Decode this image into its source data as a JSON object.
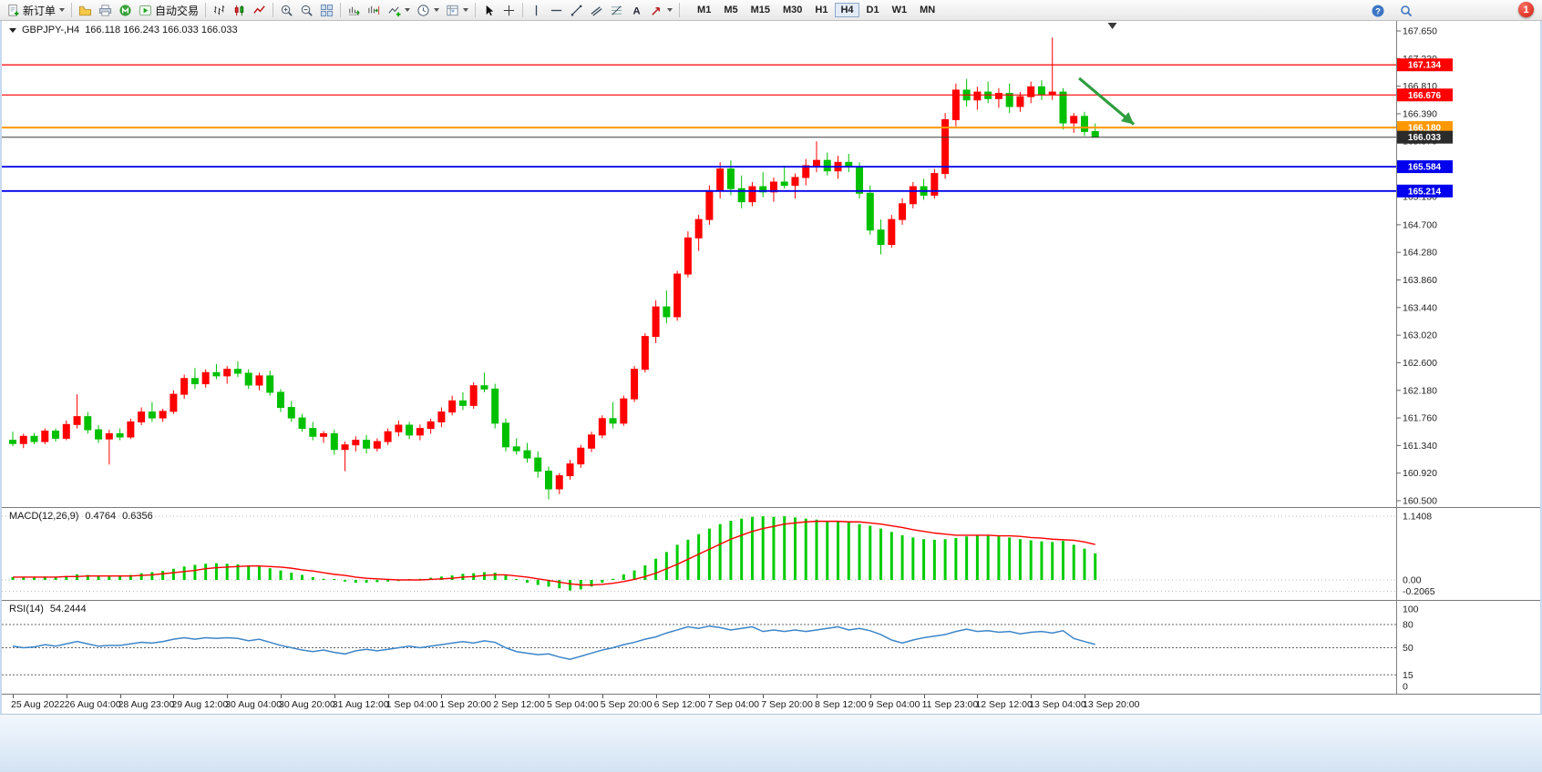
{
  "toolbar": {
    "new_order_label": "新订单",
    "auto_trading_label": "自动交易",
    "timeframes": [
      "M1",
      "M5",
      "M15",
      "M30",
      "H1",
      "H4",
      "D1",
      "W1",
      "MN"
    ],
    "active_timeframe": "H4",
    "notification_count": "1",
    "icon_glyphs": {
      "text_tool": "A",
      "help": "?"
    }
  },
  "chart_data": {
    "type": "candlestick",
    "symbol_label": "GBPJPY-,H4",
    "ohlc_label": "166.118 166.243 166.033 166.033",
    "colors": {
      "up": "#ff0000",
      "down": "#00c000",
      "macd_hist": "#00cc00",
      "macd_signal": "#ff0000",
      "rsi_line": "#3d85c8"
    },
    "main": {
      "price_min": 160.5,
      "price_max": 167.65,
      "price_ticks": [
        167.65,
        167.23,
        166.81,
        166.39,
        165.97,
        165.55,
        165.13,
        164.7,
        164.28,
        163.86,
        163.44,
        163.02,
        162.6,
        162.18,
        161.76,
        161.34,
        160.92,
        160.5
      ],
      "hlines": [
        {
          "price": 167.134,
          "label": "167.134",
          "color": "#ff0000",
          "badge": "#ff0000",
          "width": 1.2
        },
        {
          "price": 166.676,
          "label": "166.676",
          "color": "#ff0000",
          "badge": "#ff0000",
          "width": 1.2
        },
        {
          "price": 166.18,
          "label": "166.180",
          "color": "#ff9800",
          "badge": "#ff9800",
          "width": 2
        },
        {
          "price": 166.033,
          "label": "166.033",
          "color": "#3c3c3c",
          "badge": "#2b2b2b",
          "width": 1
        },
        {
          "price": 165.584,
          "label": "165.584",
          "color": "#0000ee",
          "badge": "#0000ee",
          "width": 1.8
        },
        {
          "price": 165.214,
          "label": "165.214",
          "color": "#0000ee",
          "badge": "#0000ee",
          "width": 1.8
        }
      ],
      "arrow": {
        "from_bar": 99.5,
        "from_price": 166.93,
        "to_bar": 104.6,
        "to_price": 166.23,
        "color": "#2f9e3f"
      },
      "shift_marker_bar": 102.6,
      "candles": [
        [
          161.42,
          161.55,
          161.33,
          161.37
        ],
        [
          161.37,
          161.52,
          161.3,
          161.48
        ],
        [
          161.48,
          161.53,
          161.36,
          161.4
        ],
        [
          161.4,
          161.6,
          161.36,
          161.56
        ],
        [
          161.56,
          161.6,
          161.4,
          161.45
        ],
        [
          161.45,
          161.72,
          161.42,
          161.66
        ],
        [
          161.66,
          162.12,
          161.6,
          161.78
        ],
        [
          161.78,
          161.85,
          161.52,
          161.58
        ],
        [
          161.58,
          161.65,
          161.38,
          161.44
        ],
        [
          161.44,
          161.58,
          161.05,
          161.52
        ],
        [
          161.52,
          161.6,
          161.42,
          161.47
        ],
        [
          161.47,
          161.75,
          161.44,
          161.7
        ],
        [
          161.7,
          161.92,
          161.65,
          161.85
        ],
        [
          161.85,
          162.0,
          161.7,
          161.76
        ],
        [
          161.76,
          161.9,
          161.7,
          161.86
        ],
        [
          161.86,
          162.18,
          161.82,
          162.12
        ],
        [
          162.12,
          162.42,
          162.05,
          162.36
        ],
        [
          162.36,
          162.52,
          162.2,
          162.28
        ],
        [
          162.28,
          162.5,
          162.22,
          162.45
        ],
        [
          162.45,
          162.58,
          162.35,
          162.4
        ],
        [
          162.4,
          162.55,
          162.28,
          162.5
        ],
        [
          162.5,
          162.62,
          162.38,
          162.44
        ],
        [
          162.44,
          162.5,
          162.2,
          162.26
        ],
        [
          162.26,
          162.45,
          162.18,
          162.4
        ],
        [
          162.4,
          162.48,
          162.1,
          162.15
        ],
        [
          162.15,
          162.2,
          161.85,
          161.92
        ],
        [
          161.92,
          162.02,
          161.7,
          161.76
        ],
        [
          161.76,
          161.82,
          161.55,
          161.6
        ],
        [
          161.6,
          161.7,
          161.42,
          161.48
        ],
        [
          161.48,
          161.56,
          161.38,
          161.52
        ],
        [
          161.52,
          161.58,
          161.2,
          161.28
        ],
        [
          161.28,
          161.4,
          160.95,
          161.35
        ],
        [
          161.35,
          161.48,
          161.25,
          161.42
        ],
        [
          161.42,
          161.5,
          161.22,
          161.3
        ],
        [
          161.3,
          161.45,
          161.25,
          161.4
        ],
        [
          161.4,
          161.6,
          161.35,
          161.55
        ],
        [
          161.55,
          161.72,
          161.48,
          161.65
        ],
        [
          161.65,
          161.7,
          161.44,
          161.5
        ],
        [
          161.5,
          161.66,
          161.42,
          161.6
        ],
        [
          161.6,
          161.75,
          161.52,
          161.7
        ],
        [
          161.7,
          161.92,
          161.62,
          161.85
        ],
        [
          161.85,
          162.1,
          161.8,
          162.02
        ],
        [
          162.02,
          162.15,
          161.88,
          161.95
        ],
        [
          161.95,
          162.3,
          161.9,
          162.25
        ],
        [
          162.25,
          162.45,
          162.15,
          162.2
        ],
        [
          162.2,
          162.28,
          161.6,
          161.68
        ],
        [
          161.68,
          161.75,
          161.25,
          161.32
        ],
        [
          161.32,
          161.45,
          161.2,
          161.26
        ],
        [
          161.26,
          161.38,
          161.08,
          161.15
        ],
        [
          161.15,
          161.25,
          160.85,
          160.95
        ],
        [
          160.95,
          161.02,
          160.52,
          160.68
        ],
        [
          160.68,
          160.92,
          160.6,
          160.88
        ],
        [
          160.88,
          161.12,
          160.82,
          161.06
        ],
        [
          161.06,
          161.35,
          161.0,
          161.3
        ],
        [
          161.3,
          161.55,
          161.24,
          161.5
        ],
        [
          161.5,
          161.8,
          161.45,
          161.75
        ],
        [
          161.75,
          162.0,
          161.6,
          161.68
        ],
        [
          161.68,
          162.1,
          161.64,
          162.05
        ],
        [
          162.05,
          162.55,
          162.0,
          162.5
        ],
        [
          162.5,
          163.05,
          162.45,
          163.0
        ],
        [
          163.0,
          163.55,
          162.9,
          163.45
        ],
        [
          163.45,
          163.7,
          163.2,
          163.3
        ],
        [
          163.3,
          164.0,
          163.24,
          163.95
        ],
        [
          163.95,
          164.6,
          163.9,
          164.5
        ],
        [
          164.5,
          164.85,
          164.3,
          164.78
        ],
        [
          164.78,
          165.3,
          164.7,
          165.22
        ],
        [
          165.22,
          165.65,
          165.1,
          165.55
        ],
        [
          165.55,
          165.68,
          165.15,
          165.25
        ],
        [
          165.25,
          165.45,
          164.95,
          165.05
        ],
        [
          165.05,
          165.35,
          164.98,
          165.28
        ],
        [
          165.28,
          165.5,
          165.12,
          165.2
        ],
        [
          165.2,
          165.42,
          165.05,
          165.35
        ],
        [
          165.35,
          165.6,
          165.25,
          165.3
        ],
        [
          165.3,
          165.48,
          165.1,
          165.42
        ],
        [
          165.42,
          165.7,
          165.3,
          165.6
        ],
        [
          165.6,
          165.97,
          165.5,
          165.68
        ],
        [
          165.68,
          165.8,
          165.45,
          165.52
        ],
        [
          165.52,
          165.75,
          165.4,
          165.65
        ],
        [
          165.65,
          165.78,
          165.5,
          165.58
        ],
        [
          165.58,
          165.65,
          165.1,
          165.18
        ],
        [
          165.18,
          165.3,
          164.55,
          164.62
        ],
        [
          164.62,
          164.78,
          164.25,
          164.4
        ],
        [
          164.4,
          164.85,
          164.35,
          164.78
        ],
        [
          164.78,
          165.1,
          164.7,
          165.02
        ],
        [
          165.02,
          165.35,
          164.95,
          165.28
        ],
        [
          165.28,
          165.4,
          165.08,
          165.15
        ],
        [
          165.15,
          165.55,
          165.1,
          165.48
        ],
        [
          165.48,
          166.4,
          165.4,
          166.3
        ],
        [
          166.3,
          166.85,
          166.2,
          166.75
        ],
        [
          166.75,
          166.92,
          166.5,
          166.6
        ],
        [
          166.6,
          166.8,
          166.45,
          166.72
        ],
        [
          166.72,
          166.88,
          166.55,
          166.62
        ],
        [
          166.62,
          166.78,
          166.48,
          166.7
        ],
        [
          166.7,
          166.85,
          166.4,
          166.5
        ],
        [
          166.5,
          166.72,
          166.42,
          166.65
        ],
        [
          166.65,
          166.88,
          166.55,
          166.8
        ],
        [
          166.8,
          166.9,
          166.6,
          166.68
        ],
        [
          166.68,
          167.55,
          166.6,
          166.72
        ],
        [
          166.72,
          166.78,
          166.15,
          166.25
        ],
        [
          166.25,
          166.4,
          166.1,
          166.35
        ],
        [
          166.35,
          166.42,
          166.05,
          166.12
        ],
        [
          166.118,
          166.243,
          166.033,
          166.033
        ]
      ]
    },
    "macd": {
      "label": "MACD(12,26,9)",
      "value_main": "0.4764",
      "value_signal": "0.6356",
      "scale_ticks": [
        {
          "v": 1.1408,
          "t": "1.1408"
        },
        {
          "v": 0,
          "t": "0.00"
        },
        {
          "v": -0.2065,
          "t": "-0.2065"
        }
      ],
      "hist": [
        0.05,
        0.04,
        0.05,
        0.06,
        0.05,
        0.07,
        0.1,
        0.09,
        0.07,
        0.06,
        0.07,
        0.09,
        0.12,
        0.14,
        0.16,
        0.2,
        0.24,
        0.27,
        0.29,
        0.3,
        0.29,
        0.28,
        0.26,
        0.24,
        0.21,
        0.17,
        0.13,
        0.09,
        0.05,
        0.02,
        0.0,
        -0.03,
        -0.05,
        -0.05,
        -0.04,
        -0.03,
        -0.02,
        0.0,
        0.02,
        0.04,
        0.06,
        0.08,
        0.11,
        0.12,
        0.14,
        0.13,
        0.08,
        0.01,
        -0.05,
        -0.09,
        -0.12,
        -0.15,
        -0.19,
        -0.17,
        -0.12,
        -0.05,
        0.02,
        0.1,
        0.17,
        0.26,
        0.38,
        0.5,
        0.63,
        0.72,
        0.82,
        0.92,
        1.0,
        1.06,
        1.1,
        1.13,
        1.14,
        1.13,
        1.14,
        1.12,
        1.1,
        1.08,
        1.06,
        1.05,
        1.03,
        1.0,
        0.97,
        0.92,
        0.86,
        0.8,
        0.76,
        0.73,
        0.72,
        0.73,
        0.75,
        0.78,
        0.8,
        0.79,
        0.78,
        0.76,
        0.73,
        0.71,
        0.69,
        0.68,
        0.7,
        0.63,
        0.56,
        0.4764
      ],
      "signal": [
        0.05,
        0.05,
        0.05,
        0.05,
        0.05,
        0.06,
        0.06,
        0.07,
        0.07,
        0.07,
        0.07,
        0.07,
        0.08,
        0.09,
        0.11,
        0.13,
        0.15,
        0.17,
        0.2,
        0.22,
        0.23,
        0.24,
        0.25,
        0.25,
        0.24,
        0.23,
        0.21,
        0.18,
        0.16,
        0.13,
        0.1,
        0.08,
        0.05,
        0.03,
        0.02,
        0.01,
        0.0,
        0.0,
        0.0,
        0.01,
        0.02,
        0.03,
        0.05,
        0.06,
        0.08,
        0.09,
        0.09,
        0.07,
        0.05,
        0.02,
        -0.01,
        -0.04,
        -0.07,
        -0.09,
        -0.09,
        -0.08,
        -0.06,
        -0.03,
        0.01,
        0.06,
        0.12,
        0.2,
        0.28,
        0.37,
        0.46,
        0.55,
        0.64,
        0.73,
        0.8,
        0.87,
        0.92,
        0.96,
        1.0,
        1.02,
        1.04,
        1.05,
        1.05,
        1.05,
        1.04,
        1.04,
        1.02,
        1.0,
        0.97,
        0.94,
        0.9,
        0.87,
        0.84,
        0.82,
        0.8,
        0.8,
        0.8,
        0.8,
        0.79,
        0.79,
        0.78,
        0.76,
        0.75,
        0.73,
        0.72,
        0.71,
        0.68,
        0.6356
      ]
    },
    "rsi": {
      "label": "RSI(14)",
      "value": "54.2444",
      "levels": [
        80,
        50,
        15
      ],
      "scale_ticks": [
        {
          "v": 100,
          "t": "100"
        },
        {
          "v": 80,
          "t": "80"
        },
        {
          "v": 50,
          "t": "50"
        },
        {
          "v": 15,
          "t": "15"
        },
        {
          "v": 0,
          "t": "0"
        }
      ],
      "line": [
        52,
        50,
        51,
        54,
        52,
        55,
        58,
        55,
        52,
        53,
        53,
        55,
        57,
        56,
        58,
        61,
        63,
        61,
        63,
        62,
        63,
        62,
        59,
        61,
        57,
        53,
        50,
        47,
        45,
        47,
        44,
        42,
        46,
        48,
        46,
        48,
        50,
        52,
        50,
        52,
        54,
        56,
        58,
        56,
        59,
        57,
        50,
        45,
        43,
        41,
        42,
        38,
        35,
        39,
        43,
        47,
        50,
        54,
        57,
        61,
        64,
        69,
        73,
        77,
        75,
        78,
        76,
        73,
        75,
        77,
        71,
        73,
        71,
        73,
        71,
        73,
        75,
        77,
        73,
        75,
        72,
        67,
        60,
        56,
        60,
        63,
        65,
        67,
        71,
        74,
        71,
        72,
        70,
        71,
        68,
        70,
        71,
        69,
        72,
        62,
        58,
        54.24
      ]
    },
    "time_labels": [
      "25 Aug 2022",
      "26 Aug 04:00",
      "28 Aug 23:00",
      "29 Aug 12:00",
      "30 Aug 04:00",
      "30 Aug 20:00",
      "31 Aug 12:00",
      "1 Sep 04:00",
      "1 Sep 20:00",
      "2 Sep 12:00",
      "5 Sep 04:00",
      "5 Sep 20:00",
      "6 Sep 12:00",
      "7 Sep 04:00",
      "7 Sep 20:00",
      "8 Sep 12:00",
      "9 Sep 04:00",
      "11 Sep 23:00",
      "12 Sep 12:00",
      "13 Sep 04:00",
      "13 Sep 20:00"
    ]
  }
}
